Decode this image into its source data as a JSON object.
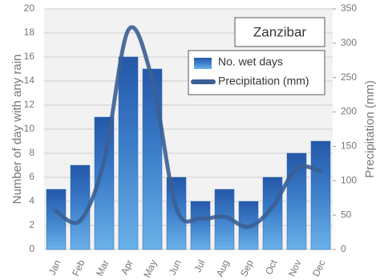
{
  "chart_data": {
    "type": "bar",
    "title": "Zanzibar",
    "ylabel": "Number of day with any rain",
    "y2label": "Precipitation (mm)",
    "categories": [
      "Jan",
      "Feb",
      "Mar",
      "Apr",
      "May",
      "Jun",
      "Jul",
      "Aug",
      "Sep",
      "Oct",
      "Nov",
      "Dec"
    ],
    "series": [
      {
        "name": "No. wet days",
        "type": "bar",
        "color": "#2a63b0",
        "values": [
          5,
          7,
          11,
          16,
          15,
          6,
          4,
          5,
          4,
          6,
          8,
          9
        ]
      },
      {
        "name": "Precipitation (mm)",
        "type": "line",
        "axis": "y2",
        "color": "#3b5f94",
        "values": [
          56,
          42,
          130,
          319,
          246,
          60,
          45,
          48,
          33,
          62,
          118,
          114
        ]
      }
    ],
    "ylim": [
      0,
      20
    ],
    "yticks": [
      0,
      2,
      4,
      6,
      8,
      10,
      12,
      14,
      16,
      18,
      20
    ],
    "y2lim": [
      0,
      350
    ],
    "y2ticks": [
      0,
      50,
      100,
      150,
      200,
      250,
      300,
      350
    ],
    "grid": true
  }
}
